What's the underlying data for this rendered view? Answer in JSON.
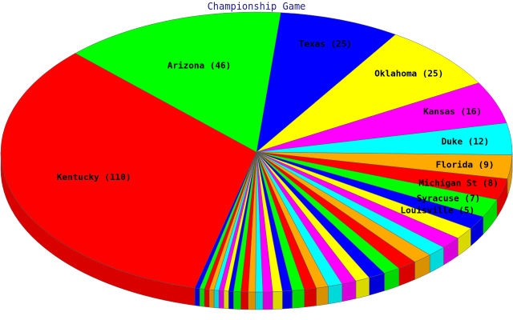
{
  "chart_data": {
    "type": "pie",
    "title": "Championship Game",
    "slices": [
      {
        "label": "Texas",
        "value": 25,
        "color": "#0000ff",
        "labeled": true
      },
      {
        "label": "Oklahoma",
        "value": 25,
        "color": "#ffff00",
        "labeled": true
      },
      {
        "label": "Kansas",
        "value": 16,
        "color": "#ff00ff",
        "labeled": true
      },
      {
        "label": "Duke",
        "value": 12,
        "color": "#00ffff",
        "labeled": true
      },
      {
        "label": "Florida",
        "value": 9,
        "color": "#ffaa00",
        "labeled": true
      },
      {
        "label": "Michigan St",
        "value": 8,
        "color": "#ff0000",
        "labeled": true
      },
      {
        "label": "Syracuse",
        "value": 7,
        "color": "#00ff00",
        "labeled": true
      },
      {
        "label": "Louisville",
        "value": 5,
        "color": "#0000ff",
        "labeled": true
      },
      {
        "label": "",
        "value": 4.5,
        "color": "#ffff00",
        "labeled": false
      },
      {
        "label": "",
        "value": 4.5,
        "color": "#ff00ff",
        "labeled": false
      },
      {
        "label": "",
        "value": 4,
        "color": "#00ffff",
        "labeled": false
      },
      {
        "label": "",
        "value": 4,
        "color": "#ffaa00",
        "labeled": false
      },
      {
        "label": "",
        "value": 4,
        "color": "#ff0000",
        "labeled": false
      },
      {
        "label": "",
        "value": 3.5,
        "color": "#00ff00",
        "labeled": false
      },
      {
        "label": "",
        "value": 3.5,
        "color": "#0000ff",
        "labeled": false
      },
      {
        "label": "",
        "value": 3,
        "color": "#ffff00",
        "labeled": false
      },
      {
        "label": "",
        "value": 3,
        "color": "#ff00ff",
        "labeled": false
      },
      {
        "label": "",
        "value": 3,
        "color": "#00ffff",
        "labeled": false
      },
      {
        "label": "",
        "value": 2.5,
        "color": "#ffaa00",
        "labeled": false
      },
      {
        "label": "",
        "value": 2.5,
        "color": "#ff0000",
        "labeled": false
      },
      {
        "label": "",
        "value": 2.5,
        "color": "#00ff00",
        "labeled": false
      },
      {
        "label": "",
        "value": 2,
        "color": "#0000ff",
        "labeled": false
      },
      {
        "label": "",
        "value": 2,
        "color": "#ffff00",
        "labeled": false
      },
      {
        "label": "",
        "value": 2,
        "color": "#ff00ff",
        "labeled": false
      },
      {
        "label": "",
        "value": 1.5,
        "color": "#00ffff",
        "labeled": false
      },
      {
        "label": "",
        "value": 1.5,
        "color": "#ffaa00",
        "labeled": false
      },
      {
        "label": "",
        "value": 1.5,
        "color": "#ff0000",
        "labeled": false
      },
      {
        "label": "",
        "value": 1.5,
        "color": "#00ff00",
        "labeled": false
      },
      {
        "label": "",
        "value": 1,
        "color": "#0000ff",
        "labeled": false
      },
      {
        "label": "",
        "value": 1,
        "color": "#ffff00",
        "labeled": false
      },
      {
        "label": "",
        "value": 1,
        "color": "#ff00ff",
        "labeled": false
      },
      {
        "label": "",
        "value": 1,
        "color": "#00ffff",
        "labeled": false
      },
      {
        "label": "",
        "value": 1,
        "color": "#ffaa00",
        "labeled": false
      },
      {
        "label": "",
        "value": 1,
        "color": "#ff0000",
        "labeled": false
      },
      {
        "label": "",
        "value": 1,
        "color": "#00ff00",
        "labeled": false
      },
      {
        "label": "",
        "value": 1,
        "color": "#0000ff",
        "labeled": false
      },
      {
        "label": "Kentucky",
        "value": 110,
        "color": "#ff0000",
        "labeled": true
      },
      {
        "label": "Arizona",
        "value": 46,
        "color": "#00ff00",
        "labeled": true
      }
    ],
    "perspective": "3d-tilted",
    "legend": "none"
  }
}
